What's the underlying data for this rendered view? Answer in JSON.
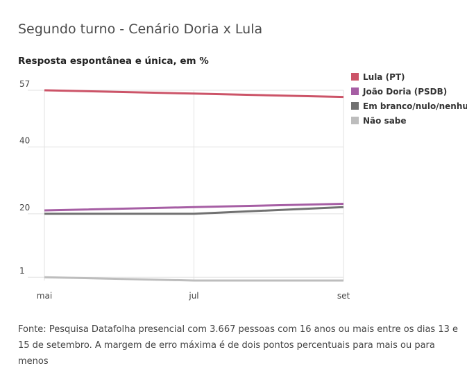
{
  "title": "Segundo turno - Cenário Doria x Lula",
  "source": "Fonte: Pesquisa Datafolha presencial com 3.667 pessoas com 16 anos ou mais entre os dias 13 e 15 de setembro. A margem de erro máxima é de dois pontos percentuais para mais ou para menos",
  "chart_data": {
    "type": "line",
    "title": "",
    "subtitle": "Resposta espontânea e única, em %",
    "x": [
      "mai",
      "jul",
      "set"
    ],
    "ylim": [
      0,
      57
    ],
    "yticks": [
      57,
      40,
      20,
      1
    ],
    "grid": true,
    "legend_position": "right",
    "series": [
      {
        "name": "Lula (PT)",
        "color": "#cc5468",
        "values": [
          57,
          56,
          55
        ]
      },
      {
        "name": "João Doria (PSDB)",
        "color": "#a65ea4",
        "values": [
          21,
          22,
          23
        ]
      },
      {
        "name": "Em branco/nulo/nenhum",
        "color": "#717171",
        "values": [
          20,
          20,
          22
        ]
      },
      {
        "name": "Não sabe",
        "color": "#bdbdbd",
        "values": [
          1,
          0,
          0
        ]
      }
    ]
  }
}
